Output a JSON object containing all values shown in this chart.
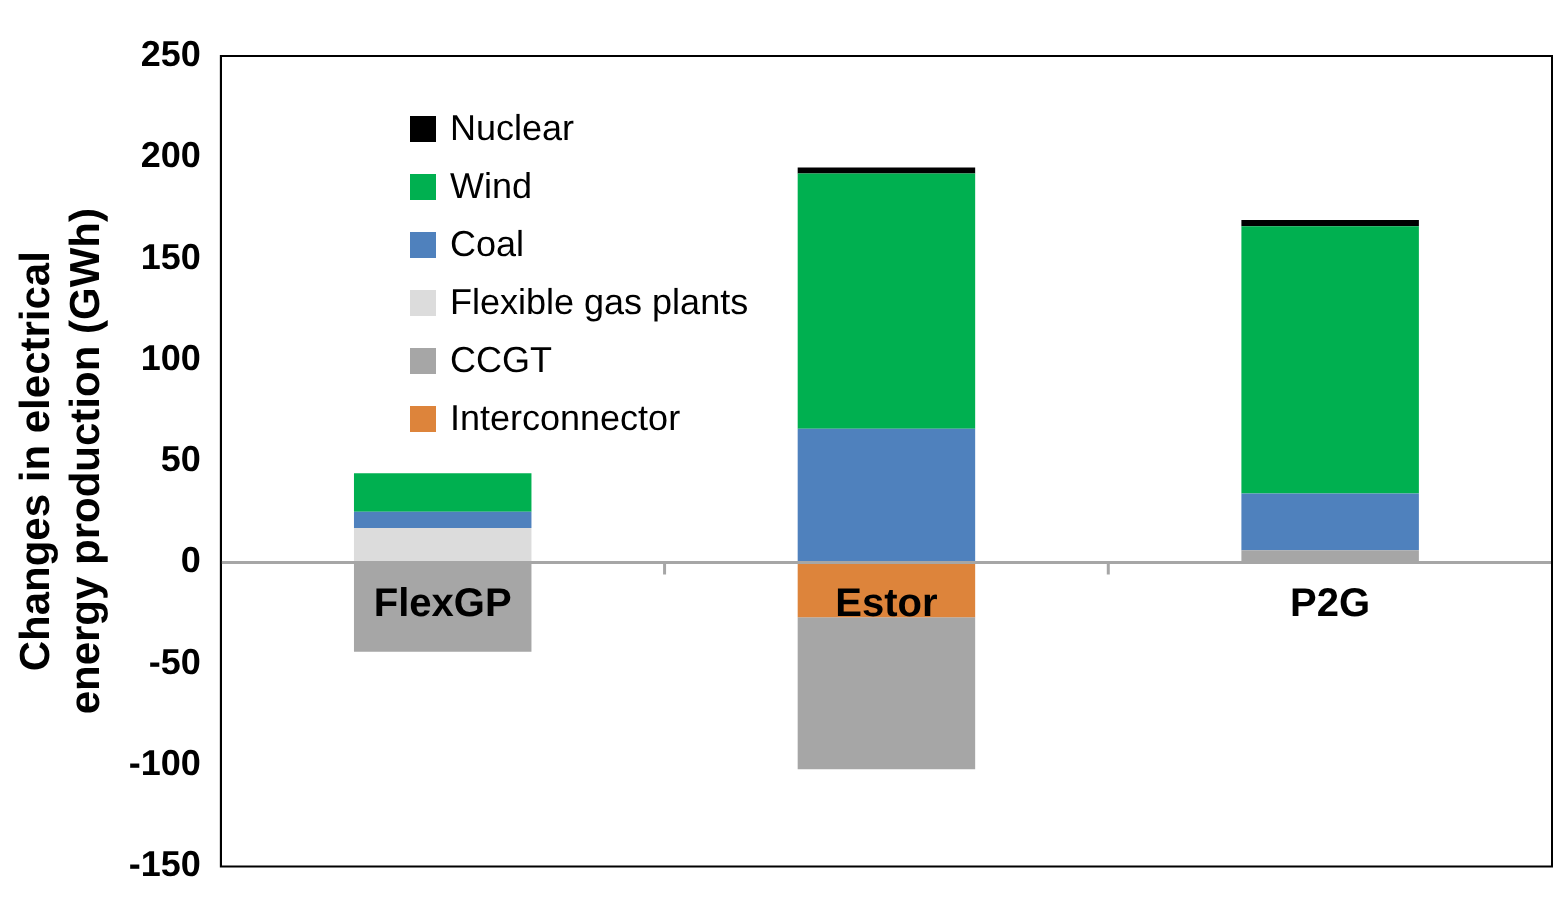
{
  "chart_data": {
    "type": "bar",
    "stacked": true,
    "ylabel": "Changes in electrical energy production (GWh)",
    "categories": [
      "FlexGP",
      "Estor",
      "P2G"
    ],
    "ylim": [
      -150,
      250
    ],
    "yticks": [
      -150,
      -100,
      -50,
      0,
      50,
      100,
      150,
      200,
      250
    ],
    "grid": false,
    "legend": "top left",
    "series": [
      {
        "name": "Interconnector",
        "color": "#dd843b",
        "values": [
          null,
          -27,
          null
        ]
      },
      {
        "name": "CCGT",
        "color": "#a6a6a6",
        "values": [
          -44,
          -75,
          6
        ]
      },
      {
        "name": "Flexible gas plants",
        "color": "#dcdcdc",
        "values": [
          17,
          null,
          null
        ]
      },
      {
        "name": "Coal",
        "color": "#4f81bd",
        "values": [
          8,
          66,
          28
        ]
      },
      {
        "name": "Wind",
        "color": "#00b050",
        "values": [
          19,
          126,
          132
        ]
      },
      {
        "name": "Nuclear",
        "color": "#000000",
        "values": [
          null,
          3,
          3
        ]
      }
    ]
  }
}
